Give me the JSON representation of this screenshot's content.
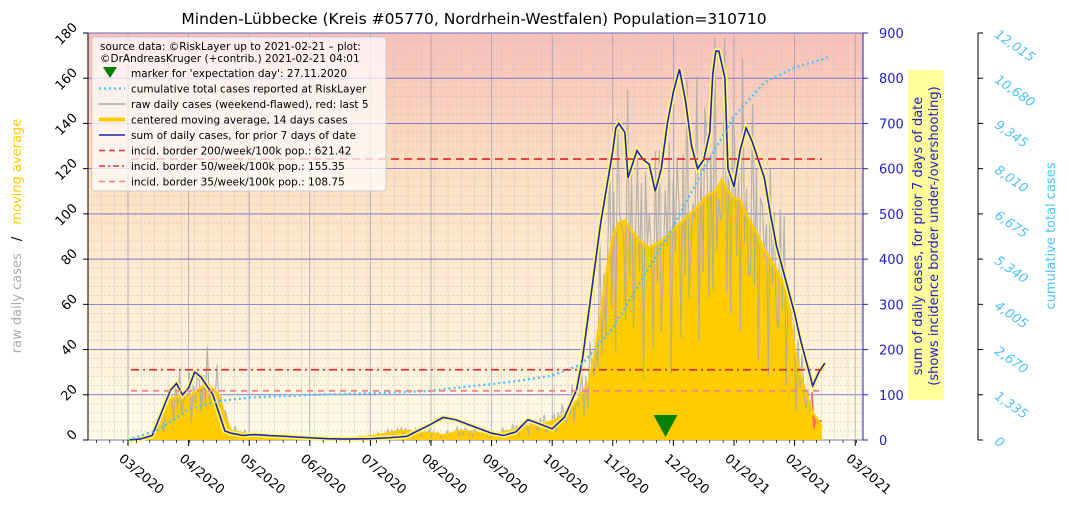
{
  "chart_data": {
    "type": "line",
    "title": "Minden-Lübbecke (Kreis #05770, Nordrhein-Westfalen) Population=310710",
    "ylabel_left_parts": [
      "raw daily cases",
      "/",
      "moving average"
    ],
    "ylabel_right": [
      "sum of daily cases, for prior 7 days of date",
      "(shows incidence border under-/overshooting)"
    ],
    "ylabel_right2": "cumulative total cases",
    "xlabel": "",
    "x_tick_labels": [
      "03/2020",
      "04/2020",
      "05/2020",
      "06/2020",
      "07/2020",
      "08/2020",
      "09/2020",
      "10/2020",
      "11/2020",
      "12/2020",
      "01/2021",
      "02/2021",
      "03/2021"
    ],
    "y_left_ticks": [
      "0",
      "20",
      "40",
      "60",
      "80",
      "100",
      "120",
      "140",
      "160",
      "180"
    ],
    "y_right_ticks": [
      "0",
      "100",
      "200",
      "300",
      "400",
      "500",
      "600",
      "700",
      "800",
      "900"
    ],
    "y_right2_ticks": [
      "0",
      "1,335",
      "2,670",
      "4,005",
      "5,340",
      "6,675",
      "8,010",
      "9,345",
      "10,680",
      "12,015"
    ],
    "ylim_left": [
      0,
      180
    ],
    "ylim_right": [
      0,
      900
    ],
    "ylim_right2": [
      0,
      12015
    ],
    "legend": {
      "source": [
        "source data: ©RiskLayer up to 2021-02-21 – plot:",
        "©DrAndreasKruger (+contrib.) 2021-02-21 04:01"
      ],
      "items": [
        {
          "label": "marker for 'expectation day': 27.11.2020",
          "style": "marker",
          "color": "#008000"
        },
        {
          "label": "cumulative total cases reported at RiskLayer",
          "style": "dotted",
          "color": "#4fc3f7"
        },
        {
          "label": "raw daily cases (weekend-flawed), red: last 5",
          "style": "line",
          "color": "#aaaaaa"
        },
        {
          "label": "centered moving average, 14 days cases",
          "style": "thick",
          "color": "#ffcc00"
        },
        {
          "label": "sum of daily cases, for prior 7 days of date",
          "style": "line",
          "color": "#2222bb"
        },
        {
          "label": "incid. border 200/week/100k pop.: 621.42",
          "style": "dashed",
          "color": "#dd3333"
        },
        {
          "label": "incid. border  50/week/100k pop.: 155.35",
          "style": "dashdot",
          "color": "#dd3333"
        },
        {
          "label": "incid. border  35/week/100k pop.: 108.75",
          "style": "dashed",
          "color": "#ee8888"
        }
      ]
    },
    "incidence_borders_sum7": [
      621.42,
      155.35,
      108.75
    ],
    "expectation_day": "27.11.2020",
    "expectation_day_month_index": 8.87,
    "series": [
      {
        "name": "centered moving average, 14 days cases",
        "axis": "left",
        "x": [
          0.0,
          0.2,
          0.4,
          0.55,
          0.7,
          0.9,
          1.0,
          1.15,
          1.3,
          1.5,
          1.6,
          1.7,
          1.9,
          2.0,
          2.3,
          2.6,
          3.0,
          3.5,
          4.0,
          4.5,
          5.0,
          5.2,
          5.5,
          5.8,
          6.0,
          6.3,
          6.6,
          7.0,
          7.2,
          7.4,
          7.6,
          7.7,
          7.8,
          7.9,
          8.0,
          8.1,
          8.2,
          8.3,
          8.45,
          8.6,
          8.8,
          9.0,
          9.2,
          9.4,
          9.55,
          9.7,
          9.8,
          9.9,
          10.0,
          10.1,
          10.2,
          10.3,
          10.4,
          10.5,
          10.6,
          10.7,
          10.8,
          10.9,
          11.0,
          11.1,
          11.2,
          11.3,
          11.4,
          11.45
        ],
        "values": [
          0,
          0.2,
          1,
          8,
          18,
          20,
          19,
          22,
          25,
          20,
          10,
          4,
          3,
          2,
          1,
          0.5,
          0.5,
          0.5,
          1.5,
          4,
          3,
          2,
          4,
          3,
          2,
          4,
          6,
          8,
          11,
          17,
          25,
          38,
          55,
          75,
          90,
          96,
          97,
          93,
          88,
          85,
          88,
          93,
          98,
          103,
          108,
          110,
          115,
          110,
          107,
          106,
          100,
          95,
          90,
          84,
          80,
          75,
          70,
          60,
          40,
          28,
          20,
          12,
          8,
          6
        ]
      },
      {
        "name": "sum of daily cases, for prior 7 days of date",
        "axis": "right",
        "x": [
          0.0,
          0.2,
          0.4,
          0.55,
          0.7,
          0.8,
          0.9,
          1.0,
          1.1,
          1.2,
          1.3,
          1.4,
          1.5,
          1.6,
          1.7,
          1.9,
          2.1,
          2.3,
          2.6,
          3.0,
          3.3,
          3.6,
          4.0,
          4.3,
          4.6,
          5.0,
          5.2,
          5.4,
          5.7,
          6.0,
          6.2,
          6.4,
          6.6,
          6.8,
          7.0,
          7.2,
          7.3,
          7.4,
          7.5,
          7.6,
          7.7,
          7.8,
          7.9,
          8.0,
          8.05,
          8.1,
          8.2,
          8.25,
          8.3,
          8.4,
          8.5,
          8.6,
          8.7,
          8.8,
          8.9,
          9.0,
          9.1,
          9.2,
          9.3,
          9.4,
          9.5,
          9.6,
          9.65,
          9.7,
          9.75,
          9.8,
          9.85,
          9.9,
          10.0,
          10.1,
          10.2,
          10.3,
          10.4,
          10.5,
          10.6,
          10.7,
          10.8,
          10.9,
          11.0,
          11.1,
          11.2,
          11.3,
          11.4,
          11.5
        ],
        "values": [
          0,
          2,
          10,
          60,
          110,
          125,
          100,
          115,
          150,
          140,
          120,
          100,
          60,
          20,
          15,
          10,
          12,
          10,
          8,
          5,
          3,
          2,
          3,
          5,
          8,
          35,
          50,
          45,
          30,
          15,
          10,
          18,
          45,
          35,
          25,
          50,
          80,
          110,
          180,
          280,
          380,
          480,
          560,
          640,
          690,
          700,
          680,
          580,
          600,
          640,
          620,
          610,
          550,
          600,
          700,
          770,
          820,
          750,
          650,
          600,
          620,
          680,
          810,
          860,
          860,
          830,
          800,
          600,
          560,
          640,
          690,
          660,
          620,
          580,
          500,
          430,
          380,
          330,
          280,
          220,
          170,
          120,
          150,
          170
        ]
      },
      {
        "name": "cumulative total cases reported at RiskLayer",
        "axis": "right2",
        "x": [
          0.0,
          0.5,
          1.0,
          1.5,
          2.0,
          3.0,
          4.0,
          5.0,
          5.5,
          6.0,
          6.5,
          7.0,
          7.5,
          8.0,
          8.5,
          9.0,
          9.5,
          10.0,
          10.5,
          11.0,
          11.3,
          11.55
        ],
        "values": [
          0,
          300,
          900,
          1150,
          1250,
          1330,
          1380,
          1450,
          1560,
          1650,
          1760,
          1900,
          2250,
          3300,
          4800,
          6300,
          8000,
          9550,
          10550,
          11000,
          11150,
          11300
        ]
      }
    ],
    "raw_daily_cases_axis": "left",
    "raw_daily_cases_last5_color": "#ff6666"
  }
}
